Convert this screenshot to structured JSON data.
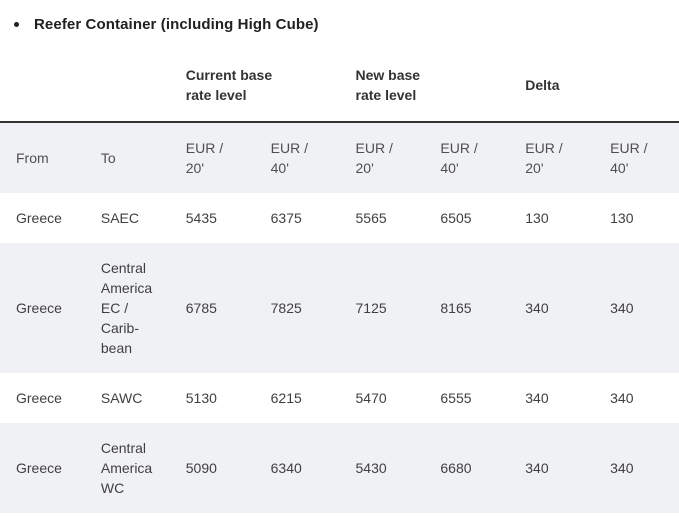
{
  "page": {
    "title": "Reefer Container (including High Cube)"
  },
  "colors": {
    "title_text": "#212121",
    "group_header_text": "#333333",
    "column_header_text": "#4f4f4f",
    "cell_text": "#404040",
    "zebra_row_bg": "#f0f1f5",
    "header_border": "#333333",
    "page_bg": "#ffffff"
  },
  "table": {
    "group_headers": [
      "",
      "Current base\nrate level",
      "New base\nrate level",
      "Delta"
    ],
    "column_headers": [
      "From",
      "To",
      "EUR /\n20'",
      "EUR /\n40'",
      "EUR /\n20'",
      "EUR /\n40'",
      "EUR /\n20'",
      "EUR /\n40'"
    ],
    "rows": [
      {
        "from": "Greece",
        "to": "SAEC",
        "current_eur20": 5435,
        "current_eur40": 6375,
        "new_eur20": 5565,
        "new_eur40": 6505,
        "delta_eur20": 130,
        "delta_eur40": 130
      },
      {
        "from": "Greece",
        "to": "Central\nAmerica\nEC /\nCarib-\nbean",
        "current_eur20": 6785,
        "current_eur40": 7825,
        "new_eur20": 7125,
        "new_eur40": 8165,
        "delta_eur20": 340,
        "delta_eur40": 340
      },
      {
        "from": "Greece",
        "to": "SAWC",
        "current_eur20": 5130,
        "current_eur40": 6215,
        "new_eur20": 5470,
        "new_eur40": 6555,
        "delta_eur20": 340,
        "delta_eur40": 340
      },
      {
        "from": "Greece",
        "to": "Central\nAmerica\nWC",
        "current_eur20": 5090,
        "current_eur40": 6340,
        "new_eur20": 5430,
        "new_eur40": 6680,
        "delta_eur20": 340,
        "delta_eur40": 340
      }
    ]
  }
}
